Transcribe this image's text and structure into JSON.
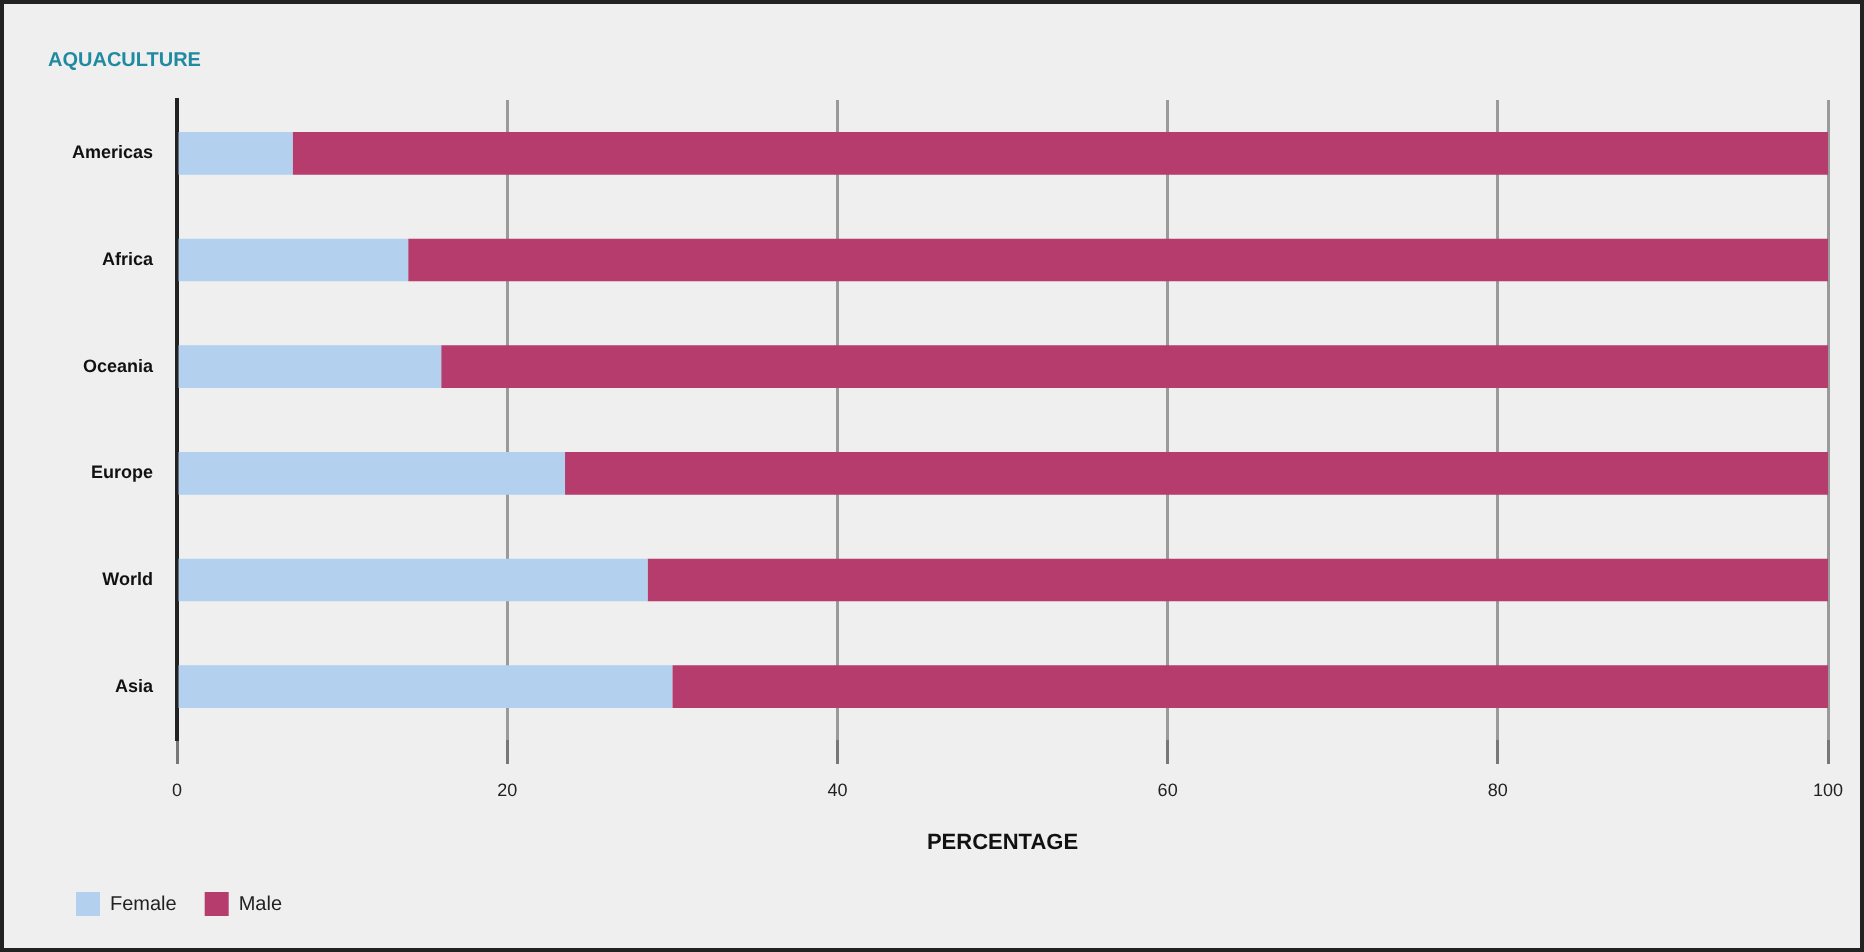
{
  "chart_data": {
    "type": "bar",
    "orientation": "horizontal",
    "stacked": true,
    "title": "AQUACULTURE",
    "xlabel": "PERCENTAGE",
    "categories": [
      "Americas",
      "Africa",
      "Oceania",
      "Europe",
      "World",
      "Asia"
    ],
    "series": [
      {
        "name": "Female",
        "color": "#b3d1ee",
        "values": [
          7,
          14,
          16,
          23.5,
          28.5,
          30
        ]
      },
      {
        "name": "Male",
        "color": "#b53c6c",
        "values": [
          93,
          86,
          84,
          76.5,
          71.5,
          70
        ]
      }
    ],
    "xlim": [
      0,
      100
    ],
    "xticks": [
      0,
      20,
      40,
      60,
      80,
      100
    ],
    "grid": "x",
    "legend": "bottom left"
  }
}
